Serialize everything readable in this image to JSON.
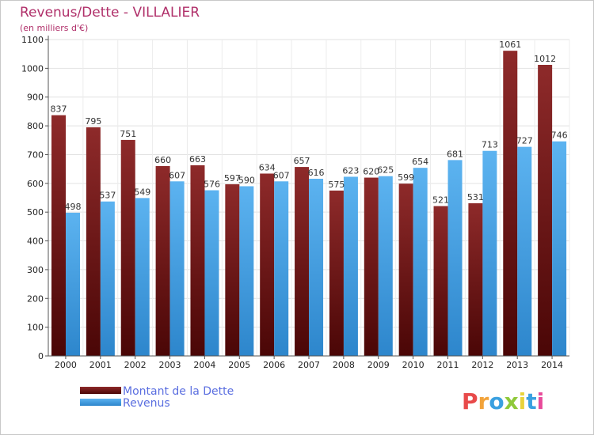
{
  "chart_data": {
    "type": "bar",
    "title": "Revenus/Dette - VILLALIER",
    "subtitle": "(en milliers d'€)",
    "categories": [
      "2000",
      "2001",
      "2002",
      "2003",
      "2004",
      "2005",
      "2006",
      "2007",
      "2008",
      "2009",
      "2010",
      "2011",
      "2012",
      "2013",
      "2014"
    ],
    "series": [
      {
        "name": "Montant de la Dette",
        "values": [
          837,
          795,
          751,
          660,
          663,
          597,
          634,
          657,
          575,
          620,
          599,
          521,
          531,
          1061,
          1012
        ],
        "color": "#7a1a1a"
      },
      {
        "name": "Revenus",
        "values": [
          498,
          537,
          549,
          607,
          576,
          590,
          607,
          616,
          623,
          625,
          654,
          681,
          713,
          727,
          746
        ],
        "color": "#4aa3e8"
      }
    ],
    "y_ticks": [
      0,
      100,
      200,
      300,
      400,
      500,
      600,
      700,
      800,
      900,
      1000,
      1100
    ],
    "ylim": [
      0,
      1100
    ],
    "grid": true,
    "legend_position": "bottom-left"
  },
  "logo": {
    "text": "Proxiti"
  }
}
